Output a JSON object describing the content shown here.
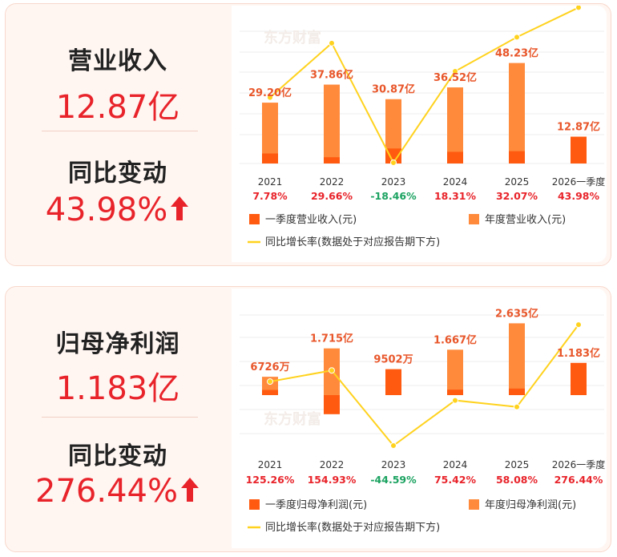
{
  "panels": [
    {
      "metric_title": "营业收入",
      "metric_value": "12.87亿",
      "change_title": "同比变动",
      "change_value": "43.98%",
      "watermark": "东方财富",
      "legend": {
        "quarter": "一季度营业收入(元)",
        "annual": "年度营业收入(元)",
        "growth": "同比增长率(数据处于对应报告期下方)"
      }
    },
    {
      "metric_title": "归母净利润",
      "metric_value": "1.183亿",
      "change_title": "同比变动",
      "change_value": "276.44%",
      "watermark": "东方财富",
      "legend": {
        "quarter": "一季度归母净利润(元)",
        "annual": "年度归母净利润(元)",
        "growth": "同比增长率(数据处于对应报告期下方)"
      }
    }
  ],
  "chart_data": [
    {
      "type": "bar",
      "categories": [
        "2021",
        "2022",
        "2023",
        "2024",
        "2025",
        "2026一季度"
      ],
      "series": [
        {
          "name": "一季度营业收入(元)",
          "unit": "亿",
          "values": [
            4.8,
            3.0,
            7.2,
            5.6,
            5.9,
            12.87
          ]
        },
        {
          "name": "年度营业收入(元)",
          "unit": "亿",
          "values": [
            29.2,
            37.86,
            30.87,
            36.52,
            48.23,
            null
          ]
        },
        {
          "name": "同比增长率(数据处于对应报告期下方)",
          "unit": "%",
          "values": [
            7.78,
            29.66,
            -18.46,
            18.31,
            32.07,
            43.98
          ]
        }
      ],
      "bar_labels": [
        "29.20亿",
        "37.86亿",
        "30.87亿",
        "36.52亿",
        "48.23亿",
        "12.87亿"
      ],
      "growth_labels": [
        "7.78%",
        "29.66%",
        "-18.46%",
        "18.31%",
        "32.07%",
        "43.98%"
      ],
      "colors": {
        "quarter": "#ff5a0f",
        "annual": "#ff8a3c",
        "growth": "#ffd21e",
        "label": "#e8562a",
        "negative": "#1aa260",
        "positive": "#e8232a"
      }
    },
    {
      "type": "bar",
      "categories": [
        "2021",
        "2022",
        "2023",
        "2024",
        "2025",
        "2026一季度"
      ],
      "series": [
        {
          "name": "一季度归母净利润(元)",
          "unit": "万",
          "values": [
            1900,
            -7000,
            9502,
            2000,
            2400,
            11830
          ]
        },
        {
          "name": "年度归母净利润(元)",
          "unit": "万",
          "values": [
            6726,
            17150,
            9502,
            16670,
            26350,
            null
          ]
        },
        {
          "name": "同比增长率(数据处于对应报告期下方)",
          "unit": "%",
          "values": [
            125.26,
            154.93,
            -44.59,
            75.42,
            58.08,
            276.44
          ]
        }
      ],
      "bar_labels": [
        "6726万",
        "1.715亿",
        "9502万",
        "1.667亿",
        "2.635亿",
        "1.183亿"
      ],
      "growth_labels": [
        "125.26%",
        "154.93%",
        "-44.59%",
        "75.42%",
        "58.08%",
        "276.44%"
      ],
      "colors": {
        "quarter": "#ff5a0f",
        "annual": "#ff8a3c",
        "growth": "#ffd21e",
        "label": "#e8562a",
        "negative": "#1aa260",
        "positive": "#e8232a"
      }
    }
  ]
}
